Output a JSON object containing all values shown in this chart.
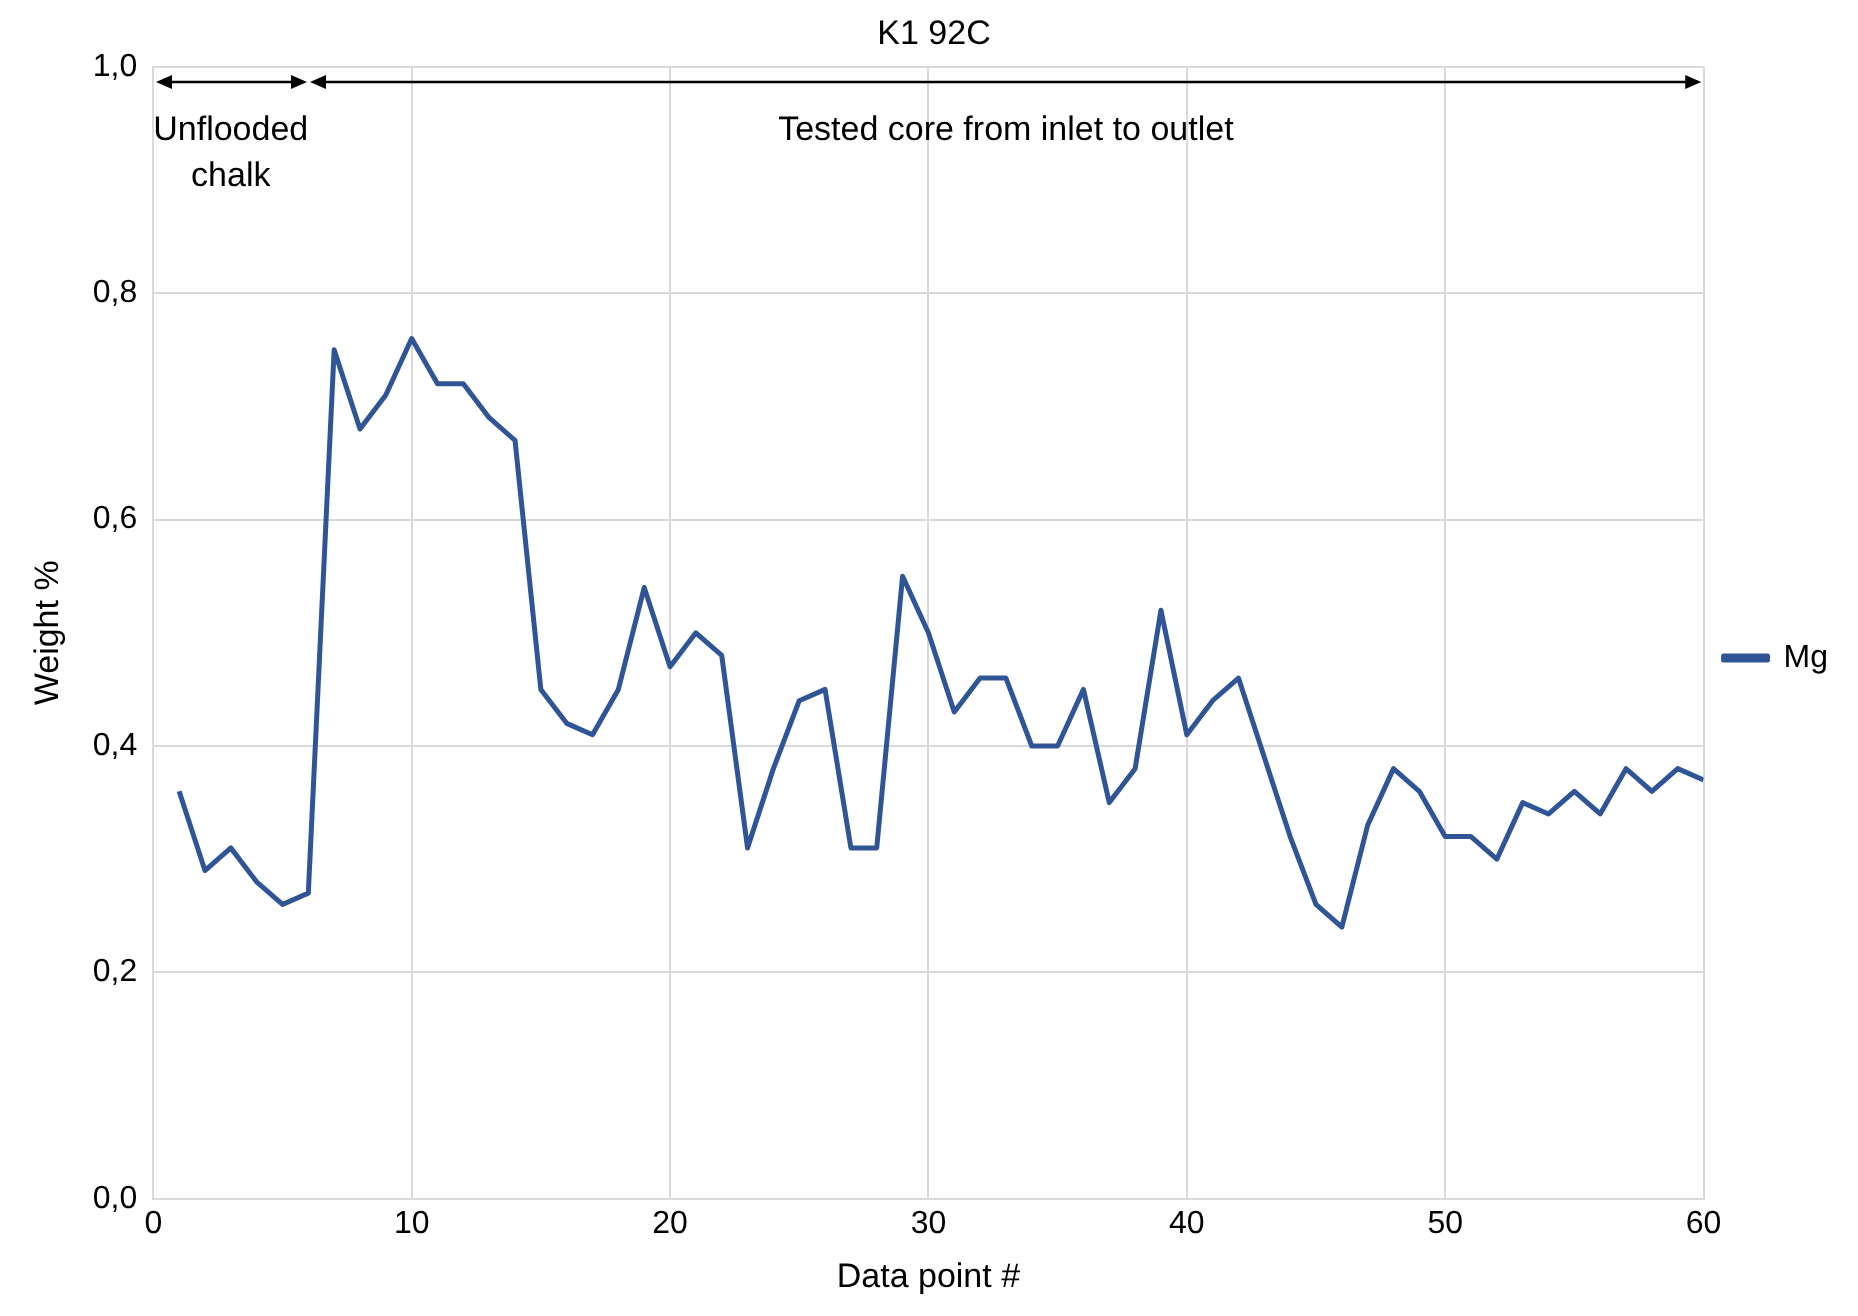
{
  "chart_data": {
    "type": "line",
    "title": "K1 92C",
    "xlabel": "Data point #",
    "ylabel": "Weight %",
    "annotations": [
      "Unflooded chalk",
      "Tested core from inlet to outlet"
    ],
    "x": [
      1,
      2,
      3,
      4,
      5,
      6,
      7,
      8,
      9,
      10,
      11,
      12,
      13,
      14,
      15,
      16,
      17,
      18,
      19,
      20,
      21,
      22,
      23,
      24,
      25,
      26,
      27,
      28,
      29,
      30,
      31,
      32,
      33,
      34,
      35,
      36,
      37,
      38,
      39,
      40,
      41,
      42,
      43,
      44,
      45,
      46,
      47,
      48,
      49,
      50,
      51,
      52,
      53,
      54,
      55,
      56,
      57,
      58,
      59,
      60
    ],
    "series": [
      {
        "name": "Mg",
        "color": "#2f5597",
        "values": [
          0.36,
          0.29,
          0.31,
          0.28,
          0.26,
          0.27,
          0.75,
          0.68,
          0.71,
          0.76,
          0.72,
          0.72,
          0.69,
          0.67,
          0.45,
          0.42,
          0.41,
          0.45,
          0.54,
          0.47,
          0.5,
          0.48,
          0.31,
          0.38,
          0.44,
          0.45,
          0.31,
          0.31,
          0.55,
          0.5,
          0.43,
          0.46,
          0.46,
          0.4,
          0.4,
          0.45,
          0.35,
          0.38,
          0.52,
          0.41,
          0.44,
          0.46,
          0.39,
          0.32,
          0.26,
          0.24,
          0.33,
          0.38,
          0.36,
          0.32,
          0.32,
          0.3,
          0.35,
          0.34,
          0.36,
          0.34,
          0.38,
          0.36,
          0.38,
          0.37
        ]
      }
    ],
    "xlim": [
      0,
      60
    ],
    "xticks": [
      0,
      10,
      20,
      30,
      40,
      50,
      60
    ],
    "ylim": [
      0,
      1
    ],
    "yticks": [
      {
        "value": 0,
        "label": "0,0"
      },
      {
        "value": 0.2,
        "label": "0,2"
      },
      {
        "value": 0.4,
        "label": "0,4"
      },
      {
        "value": 0.6,
        "label": "0,6"
      },
      {
        "value": 0.8,
        "label": "0,8"
      },
      {
        "value": 1,
        "label": "1,0"
      }
    ],
    "grid": true,
    "legend": "right",
    "marker": "none",
    "line_style": "solid"
  }
}
